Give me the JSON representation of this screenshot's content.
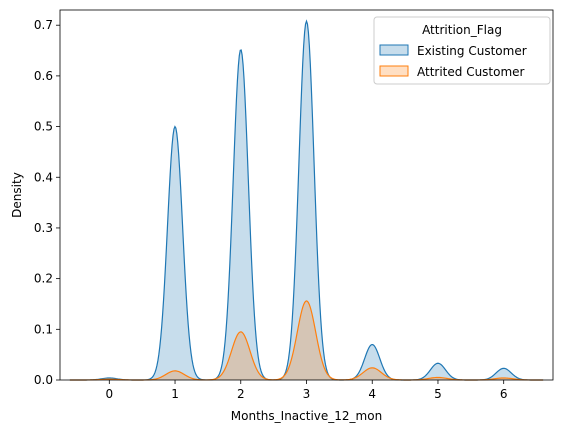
{
  "chart_data": {
    "type": "area",
    "subtype": "kde",
    "xlabel": "Months_Inactive_12_mon",
    "ylabel": "Density",
    "xlim": [
      -0.75,
      6.75
    ],
    "ylim": [
      0,
      0.73
    ],
    "xticks": [
      0,
      1,
      2,
      3,
      4,
      5,
      6
    ],
    "yticks": [
      0.0,
      0.1,
      0.2,
      0.3,
      0.4,
      0.5,
      0.6,
      0.7
    ],
    "ytick_labels": [
      "0.0",
      "0.1",
      "0.2",
      "0.3",
      "0.4",
      "0.5",
      "0.6",
      "0.7"
    ],
    "grid": false,
    "legend": {
      "title": "Attrition_Flag",
      "position": "top-right"
    },
    "series": [
      {
        "name": "Existing Customer",
        "color": "#1f77b4",
        "fill": "#1f77b4",
        "fill_opacity": 0.25,
        "peaks": [
          {
            "x": 0,
            "height": 0.004
          },
          {
            "x": 1,
            "height": 0.5
          },
          {
            "x": 2,
            "height": 0.652
          },
          {
            "x": 3,
            "height": 0.708
          },
          {
            "x": 4,
            "height": 0.07
          },
          {
            "x": 5,
            "height": 0.033
          },
          {
            "x": 6,
            "height": 0.023
          }
        ],
        "bandwidth": 0.115,
        "support": [
          -0.6,
          6.6
        ]
      },
      {
        "name": "Attrited Customer",
        "color": "#ff7f0e",
        "fill": "#ff7f0e",
        "fill_opacity": 0.25,
        "peaks": [
          {
            "x": 0,
            "height": 0.0015
          },
          {
            "x": 1,
            "height": 0.018
          },
          {
            "x": 2,
            "height": 0.095
          },
          {
            "x": 3,
            "height": 0.156
          },
          {
            "x": 4,
            "height": 0.024
          },
          {
            "x": 5,
            "height": 0.005
          },
          {
            "x": 6,
            "height": 0.004
          }
        ],
        "bandwidth": 0.14,
        "support": [
          -0.6,
          6.6
        ]
      }
    ]
  }
}
